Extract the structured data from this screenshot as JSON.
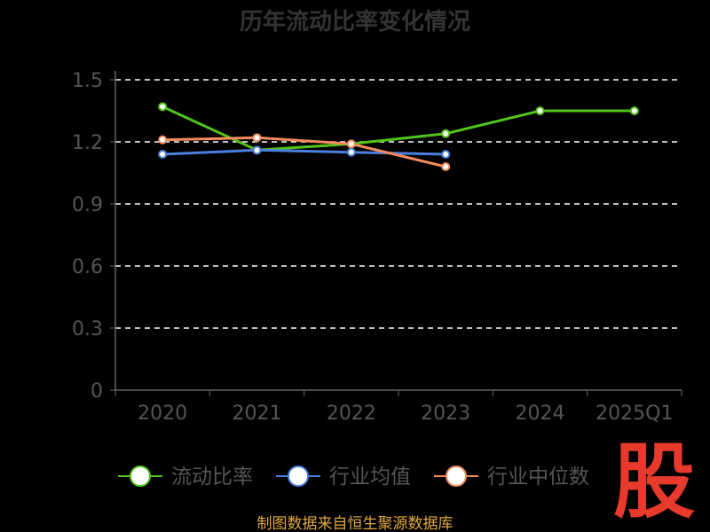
{
  "chart_data": {
    "type": "line",
    "title": "历年流动比率变化情况",
    "categories": [
      "2020",
      "2021",
      "2022",
      "2023",
      "2024",
      "2025Q1"
    ],
    "series": [
      {
        "name": "流动比率",
        "color": "#52c41a",
        "values": [
          1.37,
          1.16,
          1.19,
          1.24,
          1.35,
          1.35
        ]
      },
      {
        "name": "行业均值",
        "color": "#4a7fde",
        "values": [
          1.14,
          1.16,
          1.15,
          1.14,
          null,
          null
        ]
      },
      {
        "name": "行业中位数",
        "color": "#f58a5c",
        "values": [
          1.21,
          1.22,
          1.19,
          1.08,
          null,
          null
        ]
      }
    ],
    "ylim": [
      0,
      1.5
    ],
    "yticks": [
      "0",
      "0.3",
      "0.6",
      "0.9",
      "1.2",
      "1.5"
    ],
    "grid": true,
    "legend_position": "bottom"
  },
  "colors": {
    "axis": "#666666",
    "grid": "#ffffff",
    "tick_text": "#555555",
    "legend_text": "#555555",
    "title": "#333333",
    "source": "#e0a840",
    "logo": "#e8392d"
  },
  "source_text": "制图数据来自恒生聚源数据库",
  "logo_text": "股"
}
